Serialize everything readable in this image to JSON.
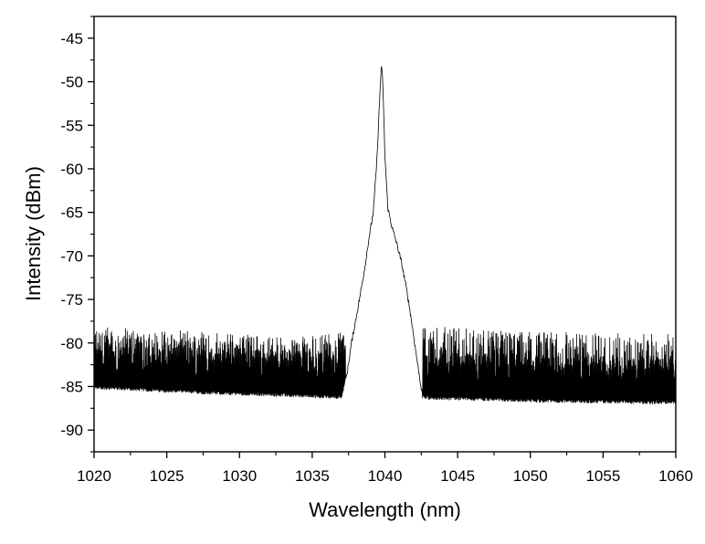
{
  "chart_data": {
    "type": "line",
    "title": "",
    "xlabel": "Wavelength (nm)",
    "ylabel": "Intensity (dBm)",
    "xlim": [
      1020,
      1060
    ],
    "ylim": [
      -92.5,
      -42.5
    ],
    "x_ticks": [
      1020,
      1025,
      1030,
      1035,
      1040,
      1045,
      1050,
      1055,
      1060
    ],
    "y_ticks": [
      -45,
      -50,
      -55,
      -60,
      -65,
      -70,
      -75,
      -80,
      -85,
      -90
    ],
    "x_tick_labels": [
      "1020",
      "1025",
      "1030",
      "1035",
      "1040",
      "1045",
      "1050",
      "1055",
      "1060"
    ],
    "y_tick_labels": [
      "-45",
      "-50",
      "-55",
      "-60",
      "-65",
      "-70",
      "-75",
      "-80",
      "-85",
      "-90"
    ],
    "grid": false,
    "legend": "none",
    "series": [
      {
        "color": "#000000",
        "x": [
          1020.0,
          1024.0,
          1028.0,
          1032.0,
          1035.0,
          1037.0,
          1037.4,
          1037.7,
          1038.0,
          1038.3,
          1038.6,
          1038.9,
          1039.2,
          1039.45,
          1039.65,
          1039.75,
          1039.85,
          1040.0,
          1040.2,
          1040.5,
          1040.8,
          1041.1,
          1041.4,
          1041.7,
          1042.0,
          1042.3,
          1042.6,
          1043.0,
          1046.0,
          1050.0,
          1054.0,
          1058.0,
          1060.0
        ],
        "y": [
          -85.3,
          -85.6,
          -85.9,
          -86.1,
          -86.3,
          -86.4,
          -83.5,
          -80.0,
          -77.3,
          -74.5,
          -71.5,
          -68.0,
          -65.0,
          -59.0,
          -51.5,
          -48.2,
          -49.8,
          -58.5,
          -64.5,
          -66.8,
          -68.5,
          -70.5,
          -73.0,
          -76.0,
          -79.5,
          -83.0,
          -86.3,
          -86.5,
          -86.6,
          -86.8,
          -86.9,
          -87.0,
          -87.0
        ],
        "noise_envelope_upper": [
          -78.2,
          -78.3,
          -78.5,
          -78.6,
          -78.8,
          -79.0,
          -79.5,
          -79.0,
          -78.5,
          -78.2,
          -78.0,
          -78.2,
          -78.5,
          -78.6,
          -78.7,
          -78.8,
          -78.9,
          -79.0,
          -79.0
        ]
      }
    ]
  }
}
